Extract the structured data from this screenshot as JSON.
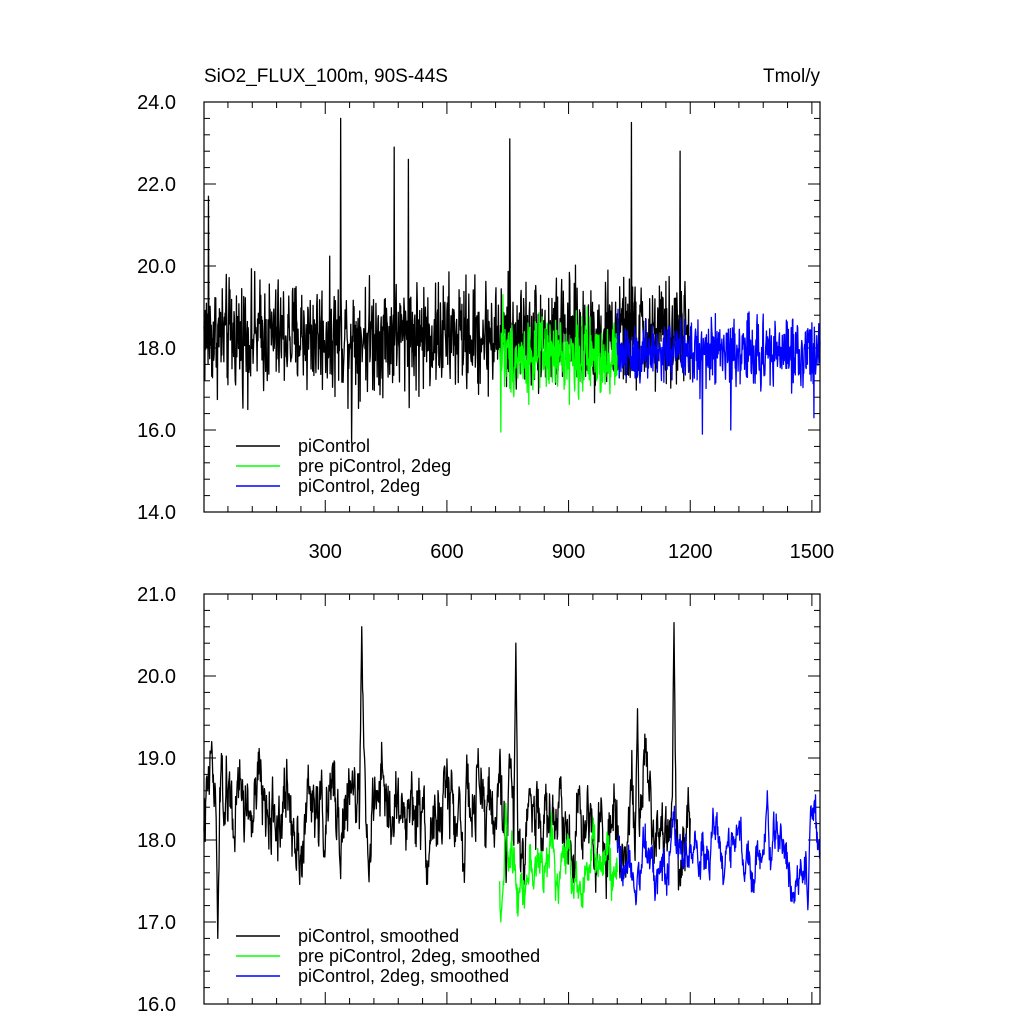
{
  "chart_data": [
    {
      "type": "line",
      "title": "SiO2_FLUX_100m, 90S-44S",
      "units": "Tmol/y",
      "xlim": [
        1,
        1520
      ],
      "ylim": [
        14.0,
        24.0
      ],
      "xticks": [
        300,
        600,
        900,
        1200,
        1500
      ],
      "xtick_labels": [
        "300",
        "600",
        "900",
        "1200",
        "1500"
      ],
      "yticks": [
        14.0,
        16.0,
        18.0,
        20.0,
        22.0,
        24.0
      ],
      "ytick_labels": [
        "14.0",
        "16.0",
        "18.0",
        "20.0",
        "22.0",
        "24.0"
      ],
      "legend_position": "bottom-left",
      "series": [
        {
          "name": "piControl",
          "color": "#000000",
          "x_start": 1,
          "x_end": 1200,
          "mean": 18.3,
          "spread": 0.95,
          "smooth": false,
          "peaks": [
            [
              12,
              21.7
            ],
            [
              338,
              23.6
            ],
            [
              470,
              22.9
            ],
            [
              505,
              22.6
            ],
            [
              755,
              23.1
            ],
            [
              1055,
              23.5
            ],
            [
              1175,
              22.8
            ],
            [
              365,
              15.7
            ]
          ]
        },
        {
          "name": "pre piControl, 2deg",
          "color": "#00ff00",
          "x_start": 730,
          "x_end": 1020,
          "mean": 17.8,
          "spread": 0.65,
          "smooth": false,
          "peaks": [
            [
              733,
              15.95
            ],
            [
              738,
              19.3
            ]
          ]
        },
        {
          "name": "piControl, 2deg",
          "color": "#0000ff",
          "x_start": 1020,
          "x_end": 1520,
          "mean": 17.9,
          "spread": 0.6,
          "smooth": false,
          "peaks": [
            [
              1230,
              15.9
            ],
            [
              1300,
              16.0
            ],
            [
              1505,
              16.3
            ]
          ]
        }
      ]
    },
    {
      "type": "line",
      "title": "",
      "units": "",
      "xlim": [
        1,
        1520
      ],
      "ylim": [
        16.0,
        21.0
      ],
      "xticks": [
        300,
        600,
        900,
        1200,
        1500
      ],
      "xtick_labels": [],
      "yticks": [
        16.0,
        17.0,
        18.0,
        19.0,
        20.0,
        21.0
      ],
      "ytick_labels": [
        "16.0",
        "17.0",
        "18.0",
        "19.0",
        "20.0",
        "21.0"
      ],
      "legend_position": "bottom-left",
      "series": [
        {
          "name": "piControl, smoothed",
          "color": "#000000",
          "x_start": 1,
          "x_end": 1200,
          "mean": 18.35,
          "spread": 0.55,
          "smooth": true,
          "peaks": [
            [
              20,
              19.2
            ],
            [
              35,
              16.8
            ],
            [
              390,
              20.6
            ],
            [
              770,
              20.4
            ],
            [
              1160,
              20.65
            ],
            [
              1070,
              19.6
            ]
          ]
        },
        {
          "name": "pre piControl, 2deg, smoothed",
          "color": "#00ff00",
          "x_start": 730,
          "x_end": 1020,
          "mean": 17.7,
          "spread": 0.35,
          "smooth": true,
          "peaks": [
            [
              733,
              17.0
            ],
            [
              745,
              18.45
            ]
          ]
        },
        {
          "name": "piControl, 2deg, smoothed",
          "color": "#0000ff",
          "x_start": 1020,
          "x_end": 1520,
          "mean": 17.85,
          "spread": 0.32,
          "smooth": true,
          "peaks": [
            [
              1390,
              18.6
            ],
            [
              1490,
              17.15
            ]
          ]
        }
      ]
    }
  ]
}
